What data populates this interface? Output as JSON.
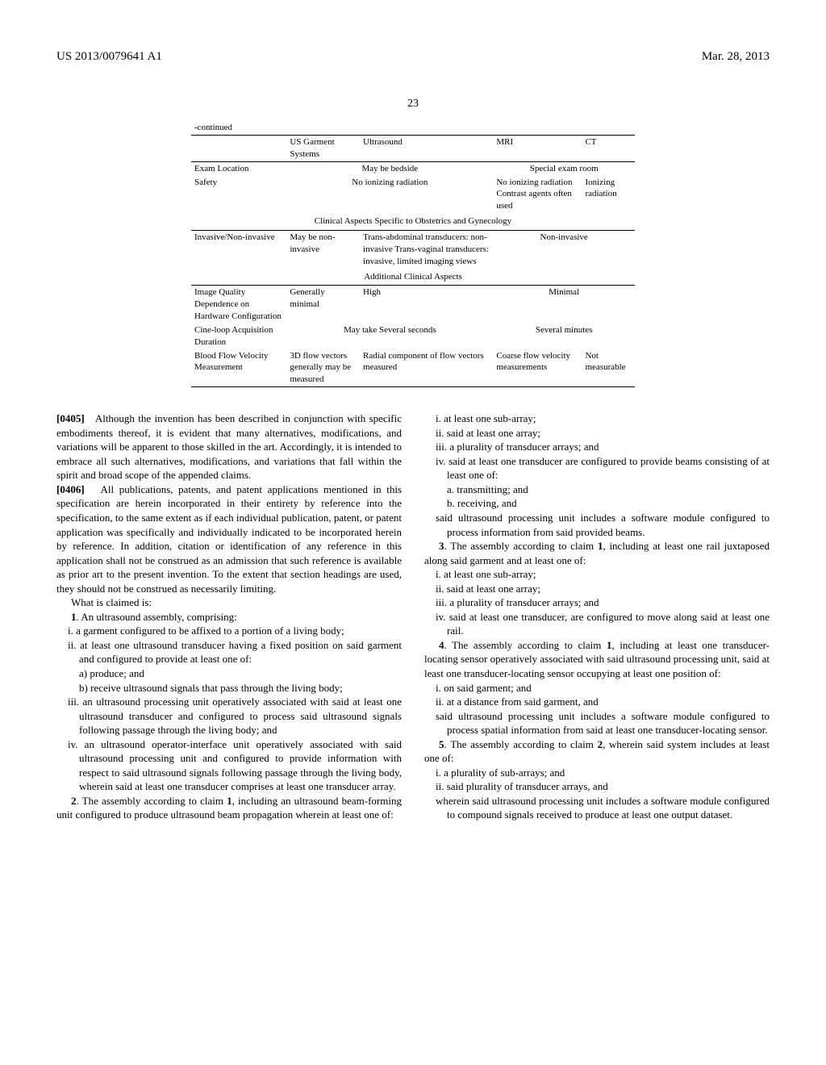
{
  "header": {
    "pubnum": "US 2013/0079641 A1",
    "date": "Mar. 28, 2013",
    "page": "23"
  },
  "table": {
    "continued": "-continued",
    "cols": [
      "",
      "US Garment Systems",
      "Ultrasound",
      "MRI",
      "CT"
    ],
    "rows1": [
      {
        "label": "Exam Location",
        "c1_2": "May be bedside",
        "c3_4": "Special exam room"
      },
      {
        "label": "Safety",
        "c1_2": "No ionizing radiation",
        "c3": "No ionizing radiation Contrast agents often used",
        "c4": "Ionizing radiation"
      }
    ],
    "section1": "Clinical Aspects Specific to Obstetrics and Gynecology",
    "rows2": [
      {
        "label": "Invasive/Non-invasive",
        "c1": "May be non-invasive",
        "c2": "Trans-abdominal transducers: non-invasive Trans-vaginal transducers: invasive, limited imaging views",
        "c3_4": "Non-invasive"
      }
    ],
    "section2": "Additional Clinical Aspects",
    "rows3": [
      {
        "label": "Image Quality Dependence on Hardware Configuration",
        "c1": "Generally minimal",
        "c2": "High",
        "c3_4": "Minimal"
      },
      {
        "label": "Cine-loop Acquisition Duration",
        "c1_2": "May take Several seconds",
        "c3_4": "Several minutes"
      },
      {
        "label": "Blood Flow Velocity Measurement",
        "c1": "3D flow vectors generally may be measured",
        "c2": "Radial component of flow vectors measured",
        "c3": "Coarse flow velocity measurements",
        "c4": "Not measurable"
      }
    ]
  },
  "body": {
    "p405_num": "[0405]",
    "p405": "Although the invention has been described in conjunction with specific embodiments thereof, it is evident that many alternatives, modifications, and variations will be apparent to those skilled in the art. Accordingly, it is intended to embrace all such alternatives, modifications, and variations that fall within the spirit and broad scope of the appended claims.",
    "p406_num": "[0406]",
    "p406": "All publications, patents, and patent applications mentioned in this specification are herein incorporated in their entirety by reference into the specification, to the same extent as if each individual publication, patent, or patent application was specifically and individually indicated to be incorporated herein by reference. In addition, citation or identification of any reference in this application shall not be construed as an admission that such reference is available as prior art to the present invention. To the extent that section headings are used, they should not be construed as necessarily limiting.",
    "what_claimed": "What is claimed is:",
    "c1_lead": "1. An ultrasound assembly, comprising:",
    "c1_i": "i. a garment configured to be affixed to a portion of a living body;",
    "c1_ii": "ii. at least one ultrasound transducer having a fixed position on said garment and configured to provide at least one of:",
    "c1_ii_a": "a) produce; and",
    "c1_ii_b": "b) receive ultrasound signals that pass through the living body;",
    "c1_iii": "iii. an ultrasound processing unit operatively associated with said at least one ultrasound transducer and configured to process said ultrasound signals following passage through the living body; and",
    "c1_iv": "iv. an ultrasound operator-interface unit operatively associated with said ultrasound processing unit and configured to provide information with respect to said ultrasound signals following passage through the living body, wherein said at least one transducer comprises at least one transducer array.",
    "c2_lead": "2. The assembly according to claim 1, including an ultrasound beam-forming unit configured to produce ultrasound beam propagation wherein at least one of:",
    "c2_i": "i. at least one sub-array;",
    "c2_ii": "ii. said at least one array;",
    "c2_iii": "iii. a plurality of transducer arrays; and",
    "c2_iv": "iv. said at least one transducer are configured to provide beams consisting of at least one of:",
    "c2_iv_a": "a. transmitting; and",
    "c2_iv_b": "b. receiving, and",
    "c2_tail": "said ultrasound processing unit includes a software module configured to process information from said provided beams.",
    "c3_lead": "3. The assembly according to claim 1, including at least one rail juxtaposed along said garment and at least one of:",
    "c3_i": "i. at least one sub-array;",
    "c3_ii": "ii. said at least one array;",
    "c3_iii": "iii. a plurality of transducer arrays; and",
    "c3_iv": "iv. said at least one transducer, are configured to move along said at least one rail.",
    "c4_lead": "4. The assembly according to claim 1, including at least one transducer-locating sensor operatively associated with said ultrasound processing unit, said at least one transducer-locating sensor occupying at least one position of:",
    "c4_i": "i. on said garment; and",
    "c4_ii": "ii. at a distance from said garment, and",
    "c4_tail": "said ultrasound processing unit includes a software module configured to process spatial information from said at least one transducer-locating sensor.",
    "c5_lead": "5. The assembly according to claim 2, wherein said system includes at least one of:",
    "c5_i": "i. a plurality of sub-arrays; and",
    "c5_ii": "ii. said plurality of transducer arrays, and",
    "c5_tail": "wherein said ultrasound processing unit includes a software module configured to compound signals received to produce at least one output dataset."
  }
}
